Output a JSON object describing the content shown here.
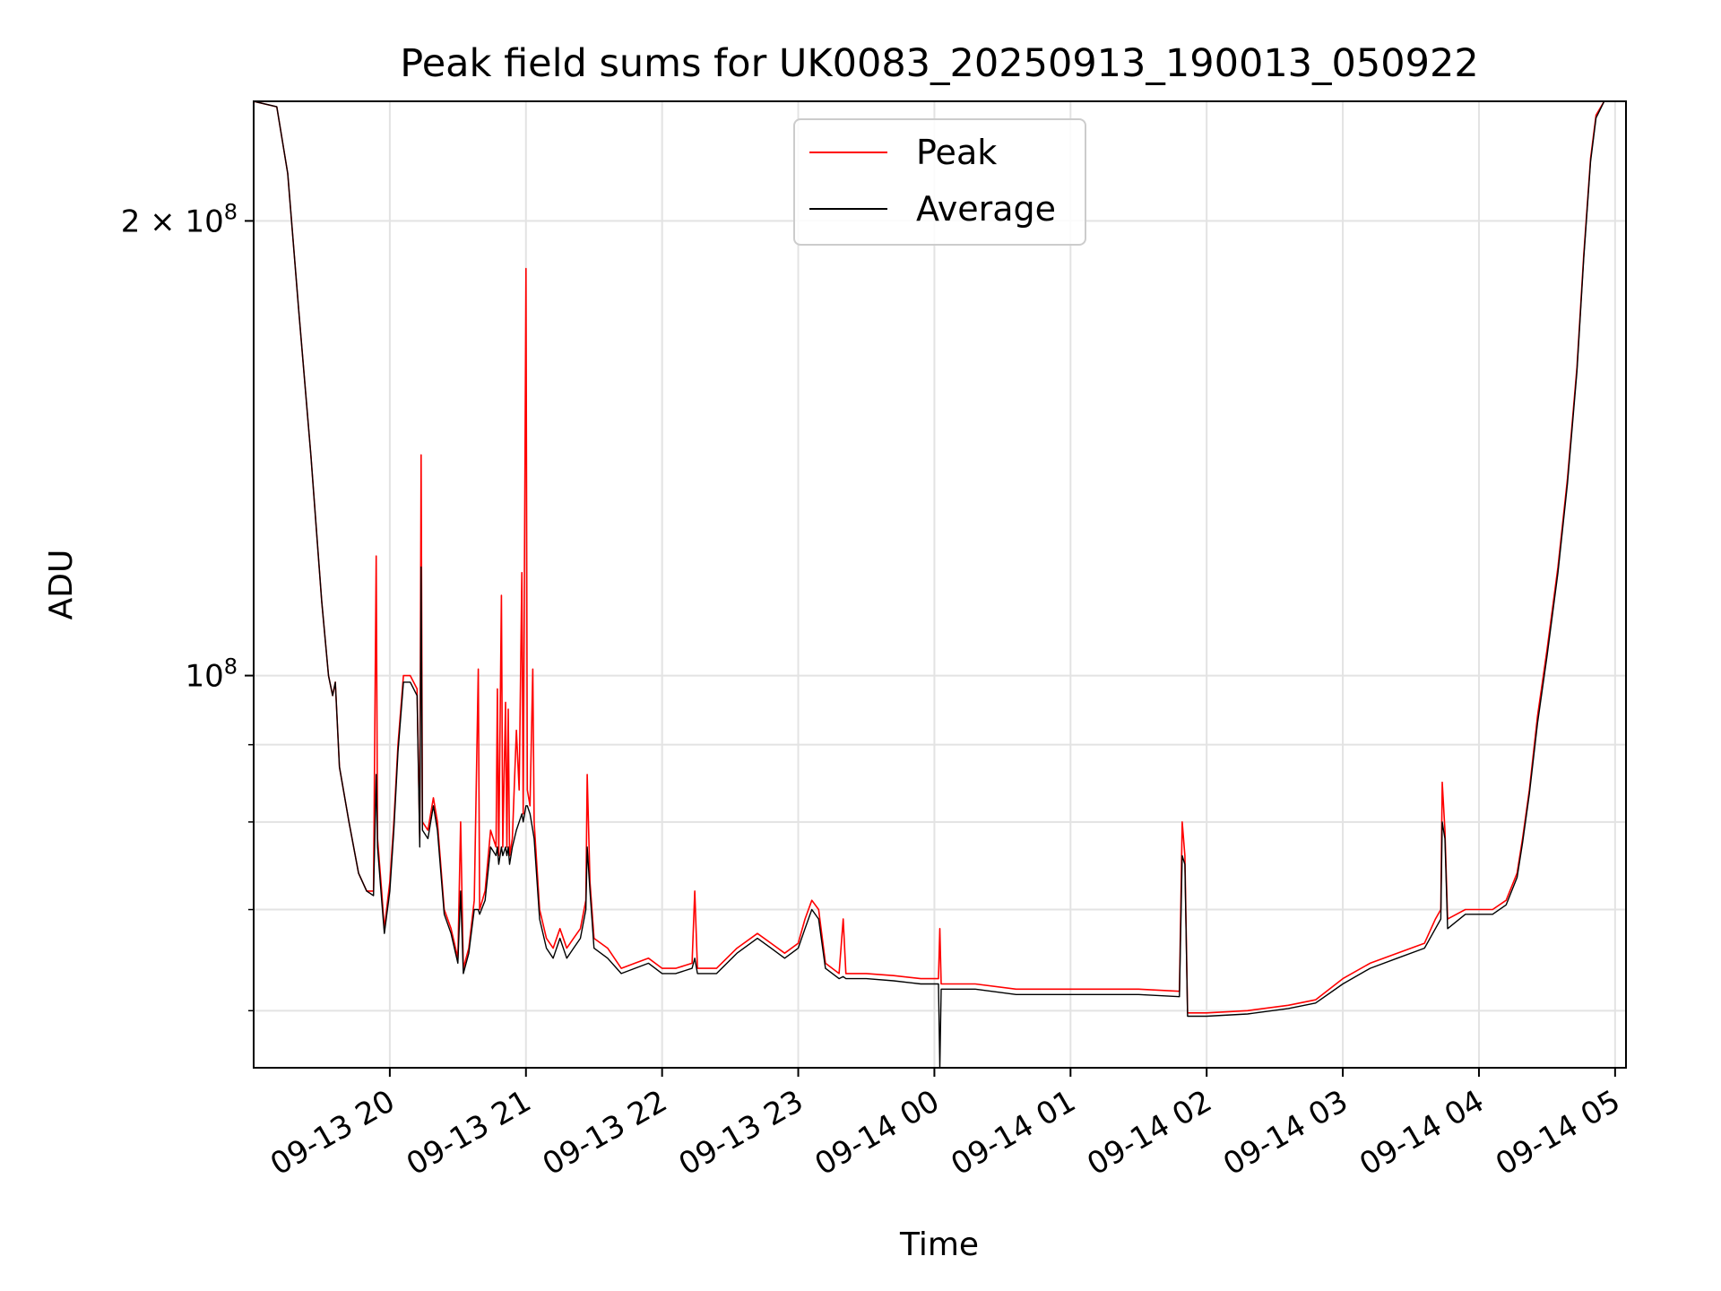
{
  "chart_data": {
    "type": "line",
    "title": "Peak field sums for UK0083_20250913_190013_050922",
    "xlabel": "Time",
    "ylabel": "ADU",
    "yscale": "log",
    "ylim": [
      55000000,
      240000000
    ],
    "xlim_hours": [
      19.0,
      29.08
    ],
    "grid": true,
    "legend_position": "upper-center",
    "x_ticks": [
      {
        "hour": 20,
        "label": "09-13 20"
      },
      {
        "hour": 21,
        "label": "09-13 21"
      },
      {
        "hour": 22,
        "label": "09-13 22"
      },
      {
        "hour": 23,
        "label": "09-13 23"
      },
      {
        "hour": 24,
        "label": "09-14 00"
      },
      {
        "hour": 25,
        "label": "09-14 01"
      },
      {
        "hour": 26,
        "label": "09-14 02"
      },
      {
        "hour": 27,
        "label": "09-14 03"
      },
      {
        "hour": 28,
        "label": "09-14 04"
      },
      {
        "hour": 29,
        "label": "09-14 05"
      }
    ],
    "y_ticks": [
      {
        "value": 100000000,
        "base": "10",
        "exp": "8",
        "mantissa": ""
      },
      {
        "value": 200000000,
        "base": "10",
        "exp": "8",
        "mantissa": "2 × "
      }
    ],
    "y_minor_ticks": [
      60000000,
      70000000,
      80000000,
      90000000
    ],
    "series": [
      {
        "name": "Peak",
        "color": "#ff0000",
        "points": [
          [
            19.0,
            240
          ],
          [
            19.17,
            238
          ],
          [
            19.25,
            215
          ],
          [
            19.33,
            175
          ],
          [
            19.42,
            140
          ],
          [
            19.5,
            112
          ],
          [
            19.55,
            100
          ],
          [
            19.58,
            97
          ],
          [
            19.6,
            99
          ],
          [
            19.63,
            87
          ],
          [
            19.7,
            80
          ],
          [
            19.77,
            74
          ],
          [
            19.83,
            72
          ],
          [
            19.88,
            72
          ],
          [
            19.9,
            120
          ],
          [
            19.91,
            78
          ],
          [
            19.94,
            72
          ],
          [
            19.96,
            68
          ],
          [
            20.0,
            73
          ],
          [
            20.03,
            80
          ],
          [
            20.06,
            90
          ],
          [
            20.1,
            100
          ],
          [
            20.15,
            100
          ],
          [
            20.2,
            98
          ],
          [
            20.22,
            78
          ],
          [
            20.23,
            140
          ],
          [
            20.24,
            80
          ],
          [
            20.28,
            79
          ],
          [
            20.32,
            83
          ],
          [
            20.35,
            80
          ],
          [
            20.4,
            70
          ],
          [
            20.45,
            68
          ],
          [
            20.5,
            65
          ],
          [
            20.52,
            80
          ],
          [
            20.54,
            64
          ],
          [
            20.58,
            66
          ],
          [
            20.62,
            71
          ],
          [
            20.65,
            101
          ],
          [
            20.66,
            70
          ],
          [
            20.7,
            72
          ],
          [
            20.74,
            79
          ],
          [
            20.78,
            77
          ],
          [
            20.79,
            98
          ],
          [
            20.8,
            76
          ],
          [
            20.82,
            113
          ],
          [
            20.83,
            77
          ],
          [
            20.85,
            96
          ],
          [
            20.86,
            77
          ],
          [
            20.87,
            95
          ],
          [
            20.88,
            76
          ],
          [
            20.9,
            78
          ],
          [
            20.93,
            92
          ],
          [
            20.95,
            84
          ],
          [
            20.97,
            117
          ],
          [
            20.98,
            81
          ],
          [
            21.0,
            186
          ],
          [
            21.01,
            84
          ],
          [
            21.03,
            82
          ],
          [
            21.05,
            101
          ],
          [
            21.06,
            80
          ],
          [
            21.1,
            70
          ],
          [
            21.15,
            67
          ],
          [
            21.2,
            66
          ],
          [
            21.25,
            68
          ],
          [
            21.3,
            66
          ],
          [
            21.35,
            67
          ],
          [
            21.4,
            68
          ],
          [
            21.44,
            71
          ],
          [
            21.45,
            86
          ],
          [
            21.47,
            73
          ],
          [
            21.5,
            67
          ],
          [
            21.6,
            66
          ],
          [
            21.7,
            64
          ],
          [
            21.8,
            64.5
          ],
          [
            21.9,
            65
          ],
          [
            22.0,
            64
          ],
          [
            22.1,
            64
          ],
          [
            22.22,
            64.5
          ],
          [
            22.24,
            72
          ],
          [
            22.26,
            64
          ],
          [
            22.4,
            64
          ],
          [
            22.55,
            66
          ],
          [
            22.7,
            67.5
          ],
          [
            22.8,
            66.5
          ],
          [
            22.9,
            65.5
          ],
          [
            23.0,
            66.5
          ],
          [
            23.05,
            69
          ],
          [
            23.1,
            71
          ],
          [
            23.15,
            70
          ],
          [
            23.2,
            64.5
          ],
          [
            23.3,
            63.5
          ],
          [
            23.33,
            69
          ],
          [
            23.35,
            63.5
          ],
          [
            23.5,
            63.5
          ],
          [
            23.7,
            63.3
          ],
          [
            23.9,
            63
          ],
          [
            24.03,
            63
          ],
          [
            24.04,
            68
          ],
          [
            24.05,
            62.5
          ],
          [
            24.3,
            62.5
          ],
          [
            24.6,
            62
          ],
          [
            24.9,
            62
          ],
          [
            25.2,
            62
          ],
          [
            25.5,
            62
          ],
          [
            25.8,
            61.8
          ],
          [
            25.82,
            80
          ],
          [
            25.84,
            76
          ],
          [
            25.86,
            59.8
          ],
          [
            26.0,
            59.8
          ],
          [
            26.3,
            60
          ],
          [
            26.6,
            60.5
          ],
          [
            26.8,
            61
          ],
          [
            27.0,
            63
          ],
          [
            27.2,
            64.5
          ],
          [
            27.4,
            65.5
          ],
          [
            27.6,
            66.5
          ],
          [
            27.68,
            69
          ],
          [
            27.72,
            70
          ],
          [
            27.73,
            85
          ],
          [
            27.75,
            79
          ],
          [
            27.77,
            69
          ],
          [
            27.9,
            70
          ],
          [
            28.0,
            70
          ],
          [
            28.1,
            70
          ],
          [
            28.2,
            71
          ],
          [
            28.28,
            74
          ],
          [
            28.32,
            78
          ],
          [
            28.37,
            84
          ],
          [
            28.43,
            94
          ],
          [
            28.5,
            104
          ],
          [
            28.58,
            118
          ],
          [
            28.65,
            135
          ],
          [
            28.72,
            160
          ],
          [
            28.77,
            190
          ],
          [
            28.82,
            220
          ],
          [
            28.86,
            235
          ],
          [
            28.92,
            240
          ],
          [
            29.08,
            240
          ]
        ]
      },
      {
        "name": "Average",
        "color": "#000000",
        "points": [
          [
            19.0,
            240
          ],
          [
            19.17,
            238
          ],
          [
            19.25,
            215
          ],
          [
            19.33,
            175
          ],
          [
            19.42,
            140
          ],
          [
            19.5,
            112
          ],
          [
            19.55,
            100
          ],
          [
            19.58,
            97
          ],
          [
            19.6,
            99
          ],
          [
            19.63,
            87
          ],
          [
            19.7,
            80
          ],
          [
            19.77,
            74
          ],
          [
            19.83,
            72
          ],
          [
            19.88,
            71.5
          ],
          [
            19.9,
            86
          ],
          [
            19.91,
            77
          ],
          [
            19.94,
            71
          ],
          [
            19.96,
            67.5
          ],
          [
            20.0,
            72
          ],
          [
            20.03,
            79
          ],
          [
            20.06,
            89
          ],
          [
            20.1,
            99
          ],
          [
            20.15,
            99
          ],
          [
            20.2,
            97
          ],
          [
            20.22,
            77
          ],
          [
            20.23,
            118
          ],
          [
            20.24,
            79
          ],
          [
            20.28,
            78
          ],
          [
            20.32,
            82
          ],
          [
            20.35,
            79
          ],
          [
            20.4,
            69.5
          ],
          [
            20.45,
            67.5
          ],
          [
            20.5,
            64.5
          ],
          [
            20.52,
            72
          ],
          [
            20.54,
            63.5
          ],
          [
            20.58,
            65.5
          ],
          [
            20.62,
            70
          ],
          [
            20.65,
            70
          ],
          [
            20.66,
            69.5
          ],
          [
            20.7,
            71
          ],
          [
            20.74,
            77
          ],
          [
            20.78,
            76
          ],
          [
            20.79,
            77
          ],
          [
            20.8,
            75
          ],
          [
            20.82,
            77
          ],
          [
            20.83,
            76
          ],
          [
            20.85,
            77
          ],
          [
            20.86,
            76
          ],
          [
            20.87,
            77
          ],
          [
            20.88,
            75
          ],
          [
            20.9,
            77
          ],
          [
            20.93,
            79
          ],
          [
            20.95,
            80
          ],
          [
            20.97,
            81
          ],
          [
            20.98,
            80
          ],
          [
            21.0,
            82
          ],
          [
            21.01,
            82
          ],
          [
            21.03,
            81
          ],
          [
            21.05,
            79
          ],
          [
            21.06,
            78
          ],
          [
            21.1,
            69
          ],
          [
            21.15,
            66
          ],
          [
            21.2,
            65
          ],
          [
            21.25,
            67
          ],
          [
            21.3,
            65
          ],
          [
            21.35,
            66
          ],
          [
            21.4,
            67
          ],
          [
            21.44,
            70
          ],
          [
            21.45,
            77
          ],
          [
            21.47,
            72
          ],
          [
            21.5,
            66
          ],
          [
            21.6,
            65
          ],
          [
            21.7,
            63.5
          ],
          [
            21.8,
            64
          ],
          [
            21.9,
            64.5
          ],
          [
            22.0,
            63.5
          ],
          [
            22.1,
            63.5
          ],
          [
            22.22,
            64
          ],
          [
            22.24,
            65
          ],
          [
            22.26,
            63.5
          ],
          [
            22.4,
            63.5
          ],
          [
            22.55,
            65.5
          ],
          [
            22.7,
            67
          ],
          [
            22.8,
            66
          ],
          [
            22.9,
            65
          ],
          [
            23.0,
            66
          ],
          [
            23.05,
            68
          ],
          [
            23.1,
            70
          ],
          [
            23.15,
            69
          ],
          [
            23.2,
            64
          ],
          [
            23.3,
            63
          ],
          [
            23.33,
            63.2
          ],
          [
            23.35,
            63
          ],
          [
            23.5,
            63
          ],
          [
            23.7,
            62.8
          ],
          [
            23.9,
            62.5
          ],
          [
            24.03,
            62.5
          ],
          [
            24.04,
            55
          ],
          [
            24.05,
            62
          ],
          [
            24.3,
            62
          ],
          [
            24.6,
            61.5
          ],
          [
            24.9,
            61.5
          ],
          [
            25.2,
            61.5
          ],
          [
            25.5,
            61.5
          ],
          [
            25.8,
            61.3
          ],
          [
            25.82,
            76
          ],
          [
            25.84,
            75
          ],
          [
            25.86,
            59.5
          ],
          [
            26.0,
            59.5
          ],
          [
            26.3,
            59.7
          ],
          [
            26.6,
            60.2
          ],
          [
            26.8,
            60.7
          ],
          [
            27.0,
            62.5
          ],
          [
            27.2,
            64
          ],
          [
            27.4,
            65
          ],
          [
            27.6,
            66
          ],
          [
            27.68,
            68
          ],
          [
            27.72,
            69
          ],
          [
            27.73,
            80
          ],
          [
            27.75,
            78
          ],
          [
            27.77,
            68
          ],
          [
            27.9,
            69.5
          ],
          [
            28.0,
            69.5
          ],
          [
            28.1,
            69.5
          ],
          [
            28.2,
            70.5
          ],
          [
            28.28,
            73.5
          ],
          [
            28.32,
            77.5
          ],
          [
            28.37,
            83.5
          ],
          [
            28.43,
            93
          ],
          [
            28.5,
            103
          ],
          [
            28.58,
            117
          ],
          [
            28.65,
            134
          ],
          [
            28.72,
            159
          ],
          [
            28.77,
            189
          ],
          [
            28.82,
            219
          ],
          [
            28.86,
            234
          ],
          [
            28.92,
            240
          ],
          [
            29.08,
            240
          ]
        ]
      }
    ]
  }
}
